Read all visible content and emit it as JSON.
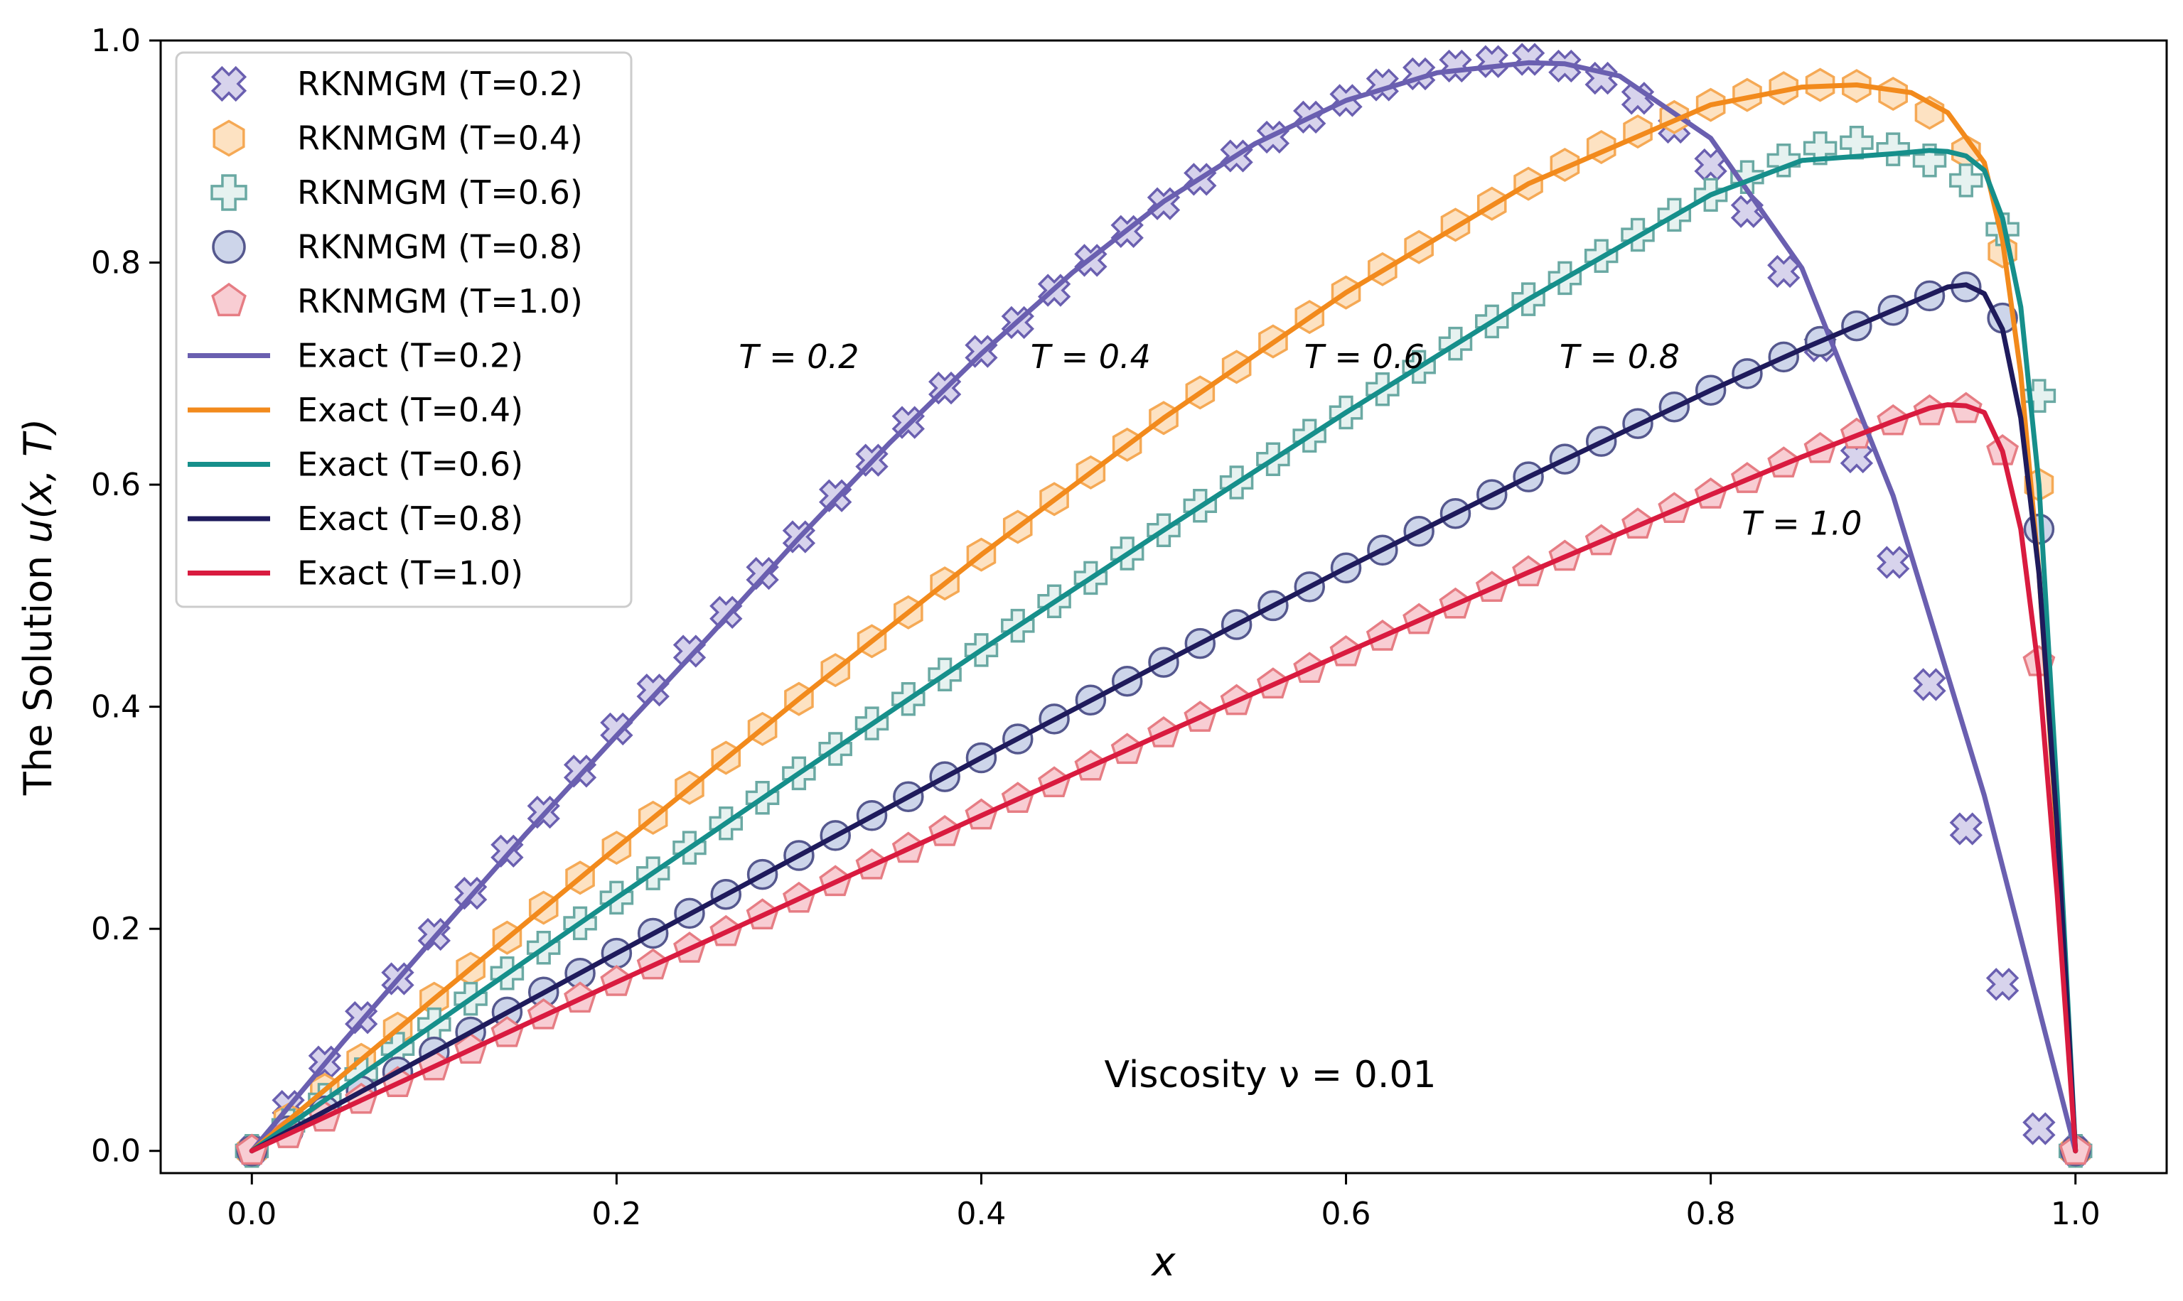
{
  "chart_data": {
    "type": "line",
    "xlabel": "x",
    "ylabel_prefix": "The Solution ",
    "ylabel_math": "u(x, T)",
    "xlim": [
      -0.05,
      1.05
    ],
    "ylim": [
      -0.02,
      1.0
    ],
    "xticks": [
      "0.0",
      "0.2",
      "0.4",
      "0.6",
      "0.8",
      "1.0"
    ],
    "yticks": [
      "0.0",
      "0.2",
      "0.4",
      "0.6",
      "0.8",
      "1.0"
    ],
    "xtick_values": [
      0.0,
      0.2,
      0.4,
      0.6,
      0.8,
      1.0
    ],
    "ytick_values": [
      0.0,
      0.2,
      0.4,
      0.6,
      0.8,
      1.0
    ],
    "legend_position": "upper-left",
    "annotation": "Viscosity ν = 0.01",
    "curve_labels": [
      {
        "text": "T = 0.2",
        "x": 0.3,
        "y": 0.705
      },
      {
        "text": "T = 0.4",
        "x": 0.46,
        "y": 0.705
      },
      {
        "text": "T = 0.6",
        "x": 0.61,
        "y": 0.705
      },
      {
        "text": "T = 0.8",
        "x": 0.75,
        "y": 0.705
      },
      {
        "text": "T = 1.0",
        "x": 0.85,
        "y": 0.555
      }
    ],
    "series": [
      {
        "name": "RKNMGM (T=0.2)",
        "kind": "markers",
        "marker": "x",
        "fill": "#d7d3ec",
        "stroke": "#6a5fb0",
        "x": [
          0.0,
          0.02,
          0.04,
          0.06,
          0.08,
          0.1,
          0.12,
          0.14,
          0.16,
          0.18,
          0.2,
          0.22,
          0.24,
          0.26,
          0.28,
          0.3,
          0.32,
          0.34,
          0.36,
          0.38,
          0.4,
          0.42,
          0.44,
          0.46,
          0.48,
          0.5,
          0.52,
          0.54,
          0.56,
          0.58,
          0.6,
          0.62,
          0.64,
          0.66,
          0.68,
          0.7,
          0.72,
          0.74,
          0.76,
          0.78,
          0.8,
          0.82,
          0.84,
          0.86,
          0.88,
          0.9,
          0.92,
          0.94,
          0.96,
          0.98,
          1.0
        ],
        "y": [
          0.0,
          0.04,
          0.08,
          0.12,
          0.155,
          0.195,
          0.232,
          0.27,
          0.305,
          0.342,
          0.38,
          0.415,
          0.45,
          0.485,
          0.52,
          0.553,
          0.59,
          0.622,
          0.656,
          0.687,
          0.72,
          0.746,
          0.775,
          0.802,
          0.828,
          0.853,
          0.875,
          0.896,
          0.913,
          0.931,
          0.946,
          0.96,
          0.97,
          0.977,
          0.981,
          0.983,
          0.977,
          0.966,
          0.948,
          0.922,
          0.888,
          0.846,
          0.792,
          0.725,
          0.625,
          0.53,
          0.42,
          0.29,
          0.15,
          0.02,
          0.0
        ]
      },
      {
        "name": "RKNMGM (T=0.4)",
        "kind": "markers",
        "marker": "hexagon",
        "fill": "#fde2c2",
        "stroke": "#f5a955",
        "x": [
          0.0,
          0.02,
          0.04,
          0.06,
          0.08,
          0.1,
          0.12,
          0.14,
          0.16,
          0.18,
          0.2,
          0.22,
          0.24,
          0.26,
          0.28,
          0.3,
          0.32,
          0.34,
          0.36,
          0.38,
          0.4,
          0.42,
          0.44,
          0.46,
          0.48,
          0.5,
          0.52,
          0.54,
          0.56,
          0.58,
          0.6,
          0.62,
          0.64,
          0.66,
          0.68,
          0.7,
          0.72,
          0.74,
          0.76,
          0.78,
          0.8,
          0.82,
          0.84,
          0.86,
          0.88,
          0.9,
          0.92,
          0.94,
          0.96,
          0.98,
          1.0
        ],
        "y": [
          0.0,
          0.028,
          0.055,
          0.082,
          0.11,
          0.137,
          0.164,
          0.192,
          0.219,
          0.246,
          0.273,
          0.3,
          0.327,
          0.354,
          0.38,
          0.407,
          0.433,
          0.459,
          0.485,
          0.511,
          0.537,
          0.562,
          0.587,
          0.611,
          0.636,
          0.66,
          0.683,
          0.706,
          0.729,
          0.751,
          0.773,
          0.794,
          0.814,
          0.834,
          0.853,
          0.871,
          0.888,
          0.904,
          0.918,
          0.931,
          0.942,
          0.951,
          0.957,
          0.96,
          0.959,
          0.952,
          0.935,
          0.9,
          0.81,
          0.6,
          0.0
        ]
      },
      {
        "name": "RKNMGM (T=0.6)",
        "kind": "markers",
        "marker": "plus",
        "fill": "#e6f2f0",
        "stroke": "#6aa9a3",
        "x": [
          0.0,
          0.02,
          0.04,
          0.06,
          0.08,
          0.1,
          0.12,
          0.14,
          0.16,
          0.18,
          0.2,
          0.22,
          0.24,
          0.26,
          0.28,
          0.3,
          0.32,
          0.34,
          0.36,
          0.38,
          0.4,
          0.42,
          0.44,
          0.46,
          0.48,
          0.5,
          0.52,
          0.54,
          0.56,
          0.58,
          0.6,
          0.62,
          0.64,
          0.66,
          0.68,
          0.7,
          0.72,
          0.74,
          0.76,
          0.78,
          0.8,
          0.82,
          0.84,
          0.86,
          0.88,
          0.9,
          0.92,
          0.94,
          0.96,
          0.98,
          1.0
        ],
        "y": [
          0.0,
          0.023,
          0.046,
          0.069,
          0.092,
          0.114,
          0.137,
          0.16,
          0.183,
          0.205,
          0.228,
          0.25,
          0.273,
          0.295,
          0.318,
          0.34,
          0.362,
          0.385,
          0.407,
          0.429,
          0.451,
          0.473,
          0.495,
          0.516,
          0.538,
          0.559,
          0.581,
          0.602,
          0.623,
          0.644,
          0.665,
          0.686,
          0.706,
          0.727,
          0.747,
          0.767,
          0.786,
          0.806,
          0.825,
          0.843,
          0.861,
          0.877,
          0.892,
          0.903,
          0.908,
          0.902,
          0.892,
          0.874,
          0.83,
          0.68,
          0.0
        ]
      },
      {
        "name": "RKNMGM (T=0.8)",
        "kind": "markers",
        "marker": "circle",
        "fill": "#cdd5ea",
        "stroke": "#55588e",
        "x": [
          0.0,
          0.02,
          0.04,
          0.06,
          0.08,
          0.1,
          0.12,
          0.14,
          0.16,
          0.18,
          0.2,
          0.22,
          0.24,
          0.26,
          0.28,
          0.3,
          0.32,
          0.34,
          0.36,
          0.38,
          0.4,
          0.42,
          0.44,
          0.46,
          0.48,
          0.5,
          0.52,
          0.54,
          0.56,
          0.58,
          0.6,
          0.62,
          0.64,
          0.66,
          0.68,
          0.7,
          0.72,
          0.74,
          0.76,
          0.78,
          0.8,
          0.82,
          0.84,
          0.86,
          0.88,
          0.9,
          0.92,
          0.94,
          0.96,
          0.98,
          1.0
        ],
        "y": [
          0.0,
          0.018,
          0.036,
          0.054,
          0.071,
          0.089,
          0.107,
          0.125,
          0.143,
          0.16,
          0.178,
          0.196,
          0.214,
          0.231,
          0.249,
          0.266,
          0.284,
          0.302,
          0.319,
          0.337,
          0.354,
          0.371,
          0.389,
          0.406,
          0.423,
          0.44,
          0.457,
          0.474,
          0.491,
          0.508,
          0.525,
          0.541,
          0.558,
          0.574,
          0.591,
          0.607,
          0.623,
          0.639,
          0.655,
          0.67,
          0.685,
          0.7,
          0.715,
          0.729,
          0.743,
          0.757,
          0.77,
          0.778,
          0.75,
          0.56,
          0.0
        ]
      },
      {
        "name": "RKNMGM (T=1.0)",
        "kind": "markers",
        "marker": "pentagon",
        "fill": "#f8cdd3",
        "stroke": "#e67d84",
        "x": [
          0.0,
          0.02,
          0.04,
          0.06,
          0.08,
          0.1,
          0.12,
          0.14,
          0.16,
          0.18,
          0.2,
          0.22,
          0.24,
          0.26,
          0.28,
          0.3,
          0.32,
          0.34,
          0.36,
          0.38,
          0.4,
          0.42,
          0.44,
          0.46,
          0.48,
          0.5,
          0.52,
          0.54,
          0.56,
          0.58,
          0.6,
          0.62,
          0.64,
          0.66,
          0.68,
          0.7,
          0.72,
          0.74,
          0.76,
          0.78,
          0.8,
          0.82,
          0.84,
          0.86,
          0.88,
          0.9,
          0.92,
          0.94,
          0.96,
          0.98,
          1.0
        ],
        "y": [
          0.0,
          0.015,
          0.03,
          0.046,
          0.061,
          0.076,
          0.091,
          0.106,
          0.122,
          0.137,
          0.152,
          0.167,
          0.182,
          0.197,
          0.212,
          0.227,
          0.242,
          0.257,
          0.272,
          0.287,
          0.302,
          0.317,
          0.331,
          0.346,
          0.361,
          0.376,
          0.39,
          0.405,
          0.42,
          0.434,
          0.449,
          0.463,
          0.478,
          0.492,
          0.507,
          0.521,
          0.535,
          0.549,
          0.564,
          0.578,
          0.591,
          0.605,
          0.619,
          0.632,
          0.645,
          0.657,
          0.666,
          0.668,
          0.63,
          0.44,
          0.0
        ]
      },
      {
        "name": "Exact (T=0.2)",
        "kind": "line",
        "color": "#6a5fb0",
        "x": [
          0.0,
          0.05,
          0.1,
          0.15,
          0.2,
          0.25,
          0.3,
          0.35,
          0.4,
          0.45,
          0.5,
          0.55,
          0.6,
          0.65,
          0.7,
          0.72,
          0.75,
          0.8,
          0.85,
          0.9,
          0.95,
          1.0
        ],
        "y": [
          0.0,
          0.098,
          0.192,
          0.285,
          0.374,
          0.462,
          0.552,
          0.638,
          0.718,
          0.791,
          0.855,
          0.907,
          0.946,
          0.971,
          0.98,
          0.979,
          0.968,
          0.912,
          0.795,
          0.59,
          0.32,
          0.0
        ]
      },
      {
        "name": "Exact (T=0.4)",
        "kind": "line",
        "color": "#f28a1c",
        "x": [
          0.0,
          0.1,
          0.2,
          0.3,
          0.4,
          0.5,
          0.6,
          0.7,
          0.8,
          0.85,
          0.88,
          0.91,
          0.93,
          0.95,
          0.96,
          0.97,
          0.98,
          0.99,
          1.0
        ],
        "y": [
          0.0,
          0.137,
          0.273,
          0.407,
          0.537,
          0.66,
          0.773,
          0.871,
          0.942,
          0.958,
          0.96,
          0.953,
          0.935,
          0.89,
          0.82,
          0.7,
          0.52,
          0.28,
          0.0
        ]
      },
      {
        "name": "Exact (T=0.6)",
        "kind": "line",
        "color": "#168f8b",
        "x": [
          0.0,
          0.1,
          0.2,
          0.3,
          0.4,
          0.5,
          0.6,
          0.7,
          0.8,
          0.85,
          0.9,
          0.92,
          0.93,
          0.94,
          0.95,
          0.96,
          0.97,
          0.98,
          0.99,
          1.0
        ],
        "y": [
          0.0,
          0.114,
          0.228,
          0.34,
          0.451,
          0.559,
          0.665,
          0.767,
          0.861,
          0.892,
          0.898,
          0.901,
          0.9,
          0.896,
          0.883,
          0.84,
          0.76,
          0.6,
          0.32,
          0.0
        ]
      },
      {
        "name": "Exact (T=0.8)",
        "kind": "line",
        "color": "#1f1b5c",
        "x": [
          0.0,
          0.1,
          0.2,
          0.3,
          0.4,
          0.5,
          0.6,
          0.7,
          0.8,
          0.85,
          0.9,
          0.93,
          0.94,
          0.95,
          0.96,
          0.97,
          0.98,
          0.99,
          1.0
        ],
        "y": [
          0.0,
          0.089,
          0.178,
          0.266,
          0.354,
          0.44,
          0.525,
          0.607,
          0.685,
          0.722,
          0.757,
          0.778,
          0.78,
          0.772,
          0.74,
          0.66,
          0.52,
          0.29,
          0.0
        ]
      },
      {
        "name": "Exact (T=1.0)",
        "kind": "line",
        "color": "#d91b3f",
        "x": [
          0.0,
          0.1,
          0.2,
          0.3,
          0.4,
          0.5,
          0.6,
          0.7,
          0.8,
          0.85,
          0.9,
          0.92,
          0.93,
          0.94,
          0.95,
          0.96,
          0.97,
          0.98,
          0.99,
          1.0
        ],
        "y": [
          0.0,
          0.076,
          0.152,
          0.227,
          0.302,
          0.376,
          0.449,
          0.521,
          0.591,
          0.625,
          0.657,
          0.669,
          0.672,
          0.671,
          0.665,
          0.63,
          0.56,
          0.43,
          0.23,
          0.0
        ]
      }
    ]
  }
}
